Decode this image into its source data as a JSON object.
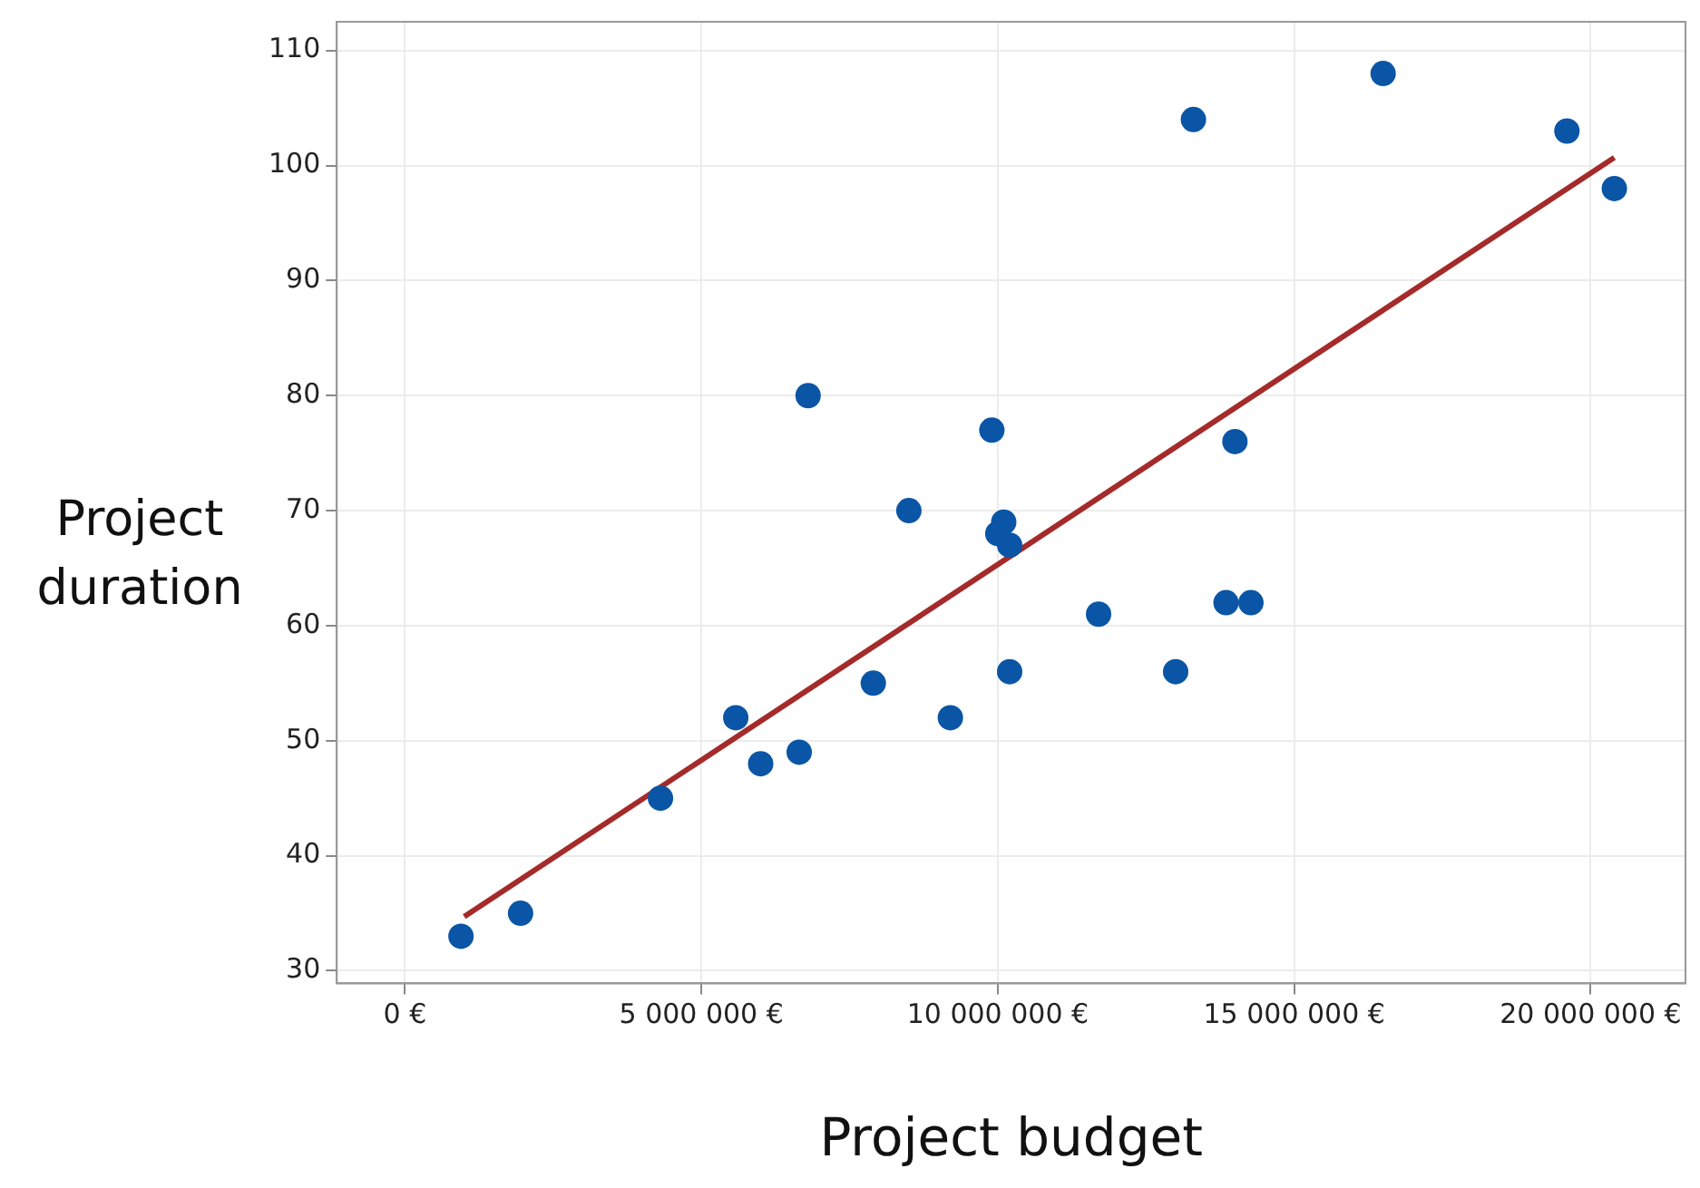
{
  "chart_data": {
    "type": "scatter",
    "xlabel": "Project budget",
    "ylabel": "Project duration",
    "series": [
      {
        "type": "scatter",
        "marker": "circle",
        "color": "#0a55a5",
        "x": [
          945000,
          1950000,
          4310000,
          5580000,
          6000000,
          6650000,
          6800000,
          7900000,
          8500000,
          9200000,
          9900000,
          10000000,
          10100000,
          10200000,
          10200000,
          11700000,
          13000000,
          13300000,
          13850000,
          14000000,
          14270000,
          16500000,
          19600000,
          20400000
        ],
        "values": [
          33,
          35,
          45,
          52,
          48,
          49,
          80,
          55,
          70,
          52,
          77,
          68,
          69,
          67,
          56,
          61,
          56,
          104,
          62,
          76,
          62,
          108,
          103,
          98
        ]
      },
      {
        "type": "line",
        "marker": "none",
        "color": "#a52a2a",
        "x": [
          1000000,
          20400000
        ],
        "values": [
          34.7,
          100.7
        ]
      }
    ],
    "xlim": [
      -1150000,
      21600000
    ],
    "ylim": [
      28.9,
      112.5
    ],
    "xticks": [
      {
        "value": 0,
        "label": "0 €"
      },
      {
        "value": 5000000,
        "label": "5 000 000 €"
      },
      {
        "value": 10000000,
        "label": "10 000 000 €"
      },
      {
        "value": 15000000,
        "label": "15 000 000 €"
      },
      {
        "value": 20000000,
        "label": "20 000 000 €"
      }
    ],
    "yticks": [
      30,
      40,
      50,
      60,
      70,
      80,
      90,
      100,
      110
    ],
    "grid": true,
    "legend": false,
    "line_style": "solid"
  }
}
